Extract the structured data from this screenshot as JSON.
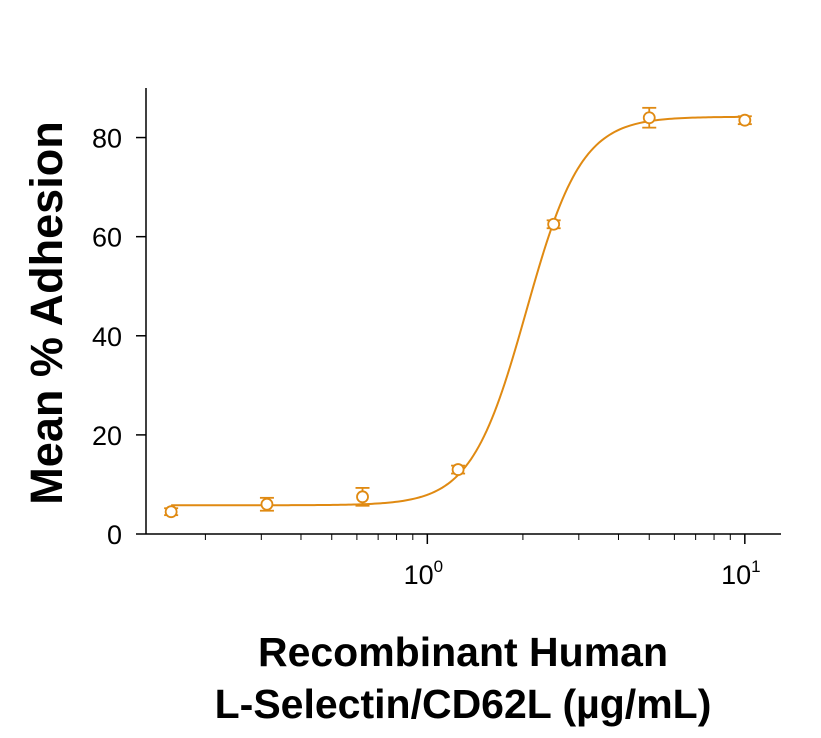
{
  "chart_data": {
    "type": "scatter",
    "title": "",
    "xlabel_lines": [
      "Recombinant Human",
      "L-Selectin/CD62L (µg/mL)"
    ],
    "ylabel": "Mean % Adhesion",
    "x_scale": "log",
    "xlim": [
      0.13,
      13
    ],
    "ylim": [
      0,
      90
    ],
    "x_ticks": [
      {
        "base": "10",
        "exp": "0"
      },
      {
        "base": "10",
        "exp": "1"
      }
    ],
    "y_ticks": [
      "0",
      "20",
      "40",
      "60",
      "80"
    ],
    "grid": false,
    "legend": "none",
    "color": "#E08A12",
    "series": [
      {
        "x": [
          0.156,
          0.3125,
          0.625,
          1.25,
          2.5,
          5,
          10
        ],
        "y": [
          4.5,
          6.0,
          7.5,
          13.0,
          62.5,
          84.0,
          83.5
        ],
        "error": [
          0.7,
          1.3,
          1.8,
          0.8,
          0.8,
          2.0,
          0.8
        ]
      }
    ],
    "fit": {
      "bottom": 5.8,
      "top": 84.2,
      "ec50": 2.05,
      "hill": 5.0
    }
  }
}
